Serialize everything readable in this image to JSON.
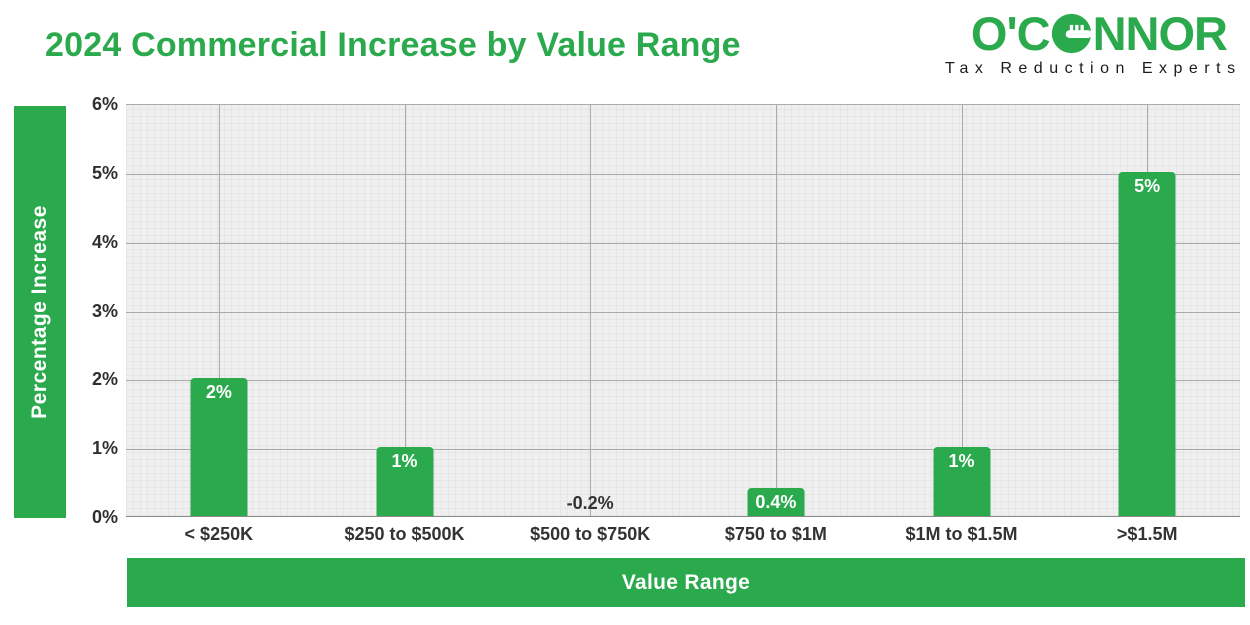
{
  "page": {
    "background": "#FFFFFF",
    "accent_green": "#2BA94D",
    "plot_background": "#EFEFEF",
    "gridline_color": "#ABABAB"
  },
  "header": {
    "title": "2024 Commercial Increase by Value Range",
    "logo": {
      "text_pre": "O'C",
      "text_post": "NNOR",
      "o_icon": "key-in-circle-icon",
      "tagline": "Tax Reduction Experts"
    }
  },
  "chart_data": {
    "type": "bar",
    "title": "2024 Commercial Increase by Value Range",
    "categories": [
      "< $250K",
      "$250 to $500K",
      "$500 to $750K",
      "$750 to $1M",
      "$1M to $1.5M",
      ">$1.5M"
    ],
    "values": [
      2,
      1,
      -0.2,
      0.4,
      1,
      5
    ],
    "value_labels": [
      "2%",
      "1%",
      "-0.2%",
      "0.4%",
      "1%",
      "5%"
    ],
    "xlabel": "Value Range",
    "ylabel": "Percentage Increase",
    "ylim": [
      0,
      6
    ],
    "yticks": [
      "0%",
      "1%",
      "2%",
      "3%",
      "4%",
      "5%",
      "6%"
    ],
    "grid": true,
    "legend": "none",
    "bar_color": "#2BA94D",
    "bar_label_color": "#FFFFFF",
    "negative_label_color": "#333333"
  }
}
